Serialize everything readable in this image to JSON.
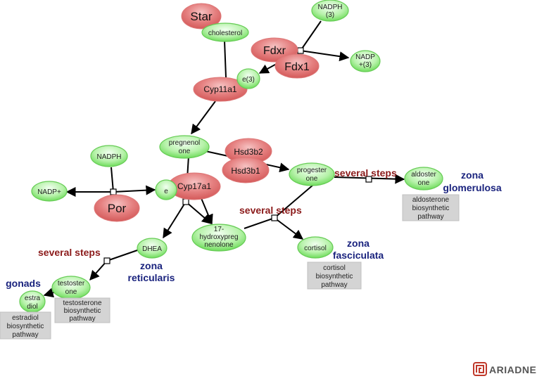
{
  "proteins": {
    "star": "Star",
    "fdxr": "Fdxr",
    "fdx1": "Fdx1",
    "cyp11a1": "Cyp11a1",
    "hsd3b2": "Hsd3b2",
    "hsd3b1": "Hsd3b1",
    "cyp17a1": "Cyp17a1",
    "por": "Por"
  },
  "molecules": {
    "cholesterol": "cholesterol",
    "nadph3": [
      "NADPH",
      "(3)"
    ],
    "nadp3": [
      "NADP",
      "+(3)"
    ],
    "e3": "e(3)",
    "pregnenolone": [
      "pregnenol",
      "one"
    ],
    "nadph": "NADPH",
    "nadp": "NADP+",
    "e": "e",
    "progesterone": [
      "progester",
      "one"
    ],
    "aldosterone": [
      "aldoster",
      "one"
    ],
    "hydroxypregnenolone": [
      "17-",
      "hydroxypreg",
      "nenolone"
    ],
    "cortisol": "cortisol",
    "dhea": "DHEA",
    "testosterone": [
      "testoster",
      "one"
    ],
    "estradiol": [
      "estra",
      "diol"
    ]
  },
  "step_labels": {
    "aldosterone": "several steps",
    "cortisol": "several steps",
    "testosterone": "several steps"
  },
  "zones": {
    "glomerulosa": [
      "zona",
      "glomerulosa"
    ],
    "fasciculata": [
      "zona",
      "fasciculata"
    ],
    "reticularis": [
      "zona",
      "reticularis"
    ],
    "gonads": "gonads"
  },
  "pathway_boxes": {
    "aldosterone": [
      "aldosterone",
      "biosynthetic",
      "pathway"
    ],
    "cortisol": [
      "cortisol",
      "biosynthetic",
      "pathway"
    ],
    "testosterone": [
      "testosterone",
      "biosynthetic",
      "pathway"
    ],
    "estradiol": [
      "estradiol",
      "biosynthetic",
      "pathway"
    ]
  },
  "brand": {
    "name": "ARIADNE",
    "logo_icon": "ariadne-maze-logo-icon"
  },
  "colors": {
    "protein": "#e06a6a",
    "molecule": "#6fdc5c",
    "step_text": "#8b1a1a",
    "zone_text": "#1a237e"
  }
}
